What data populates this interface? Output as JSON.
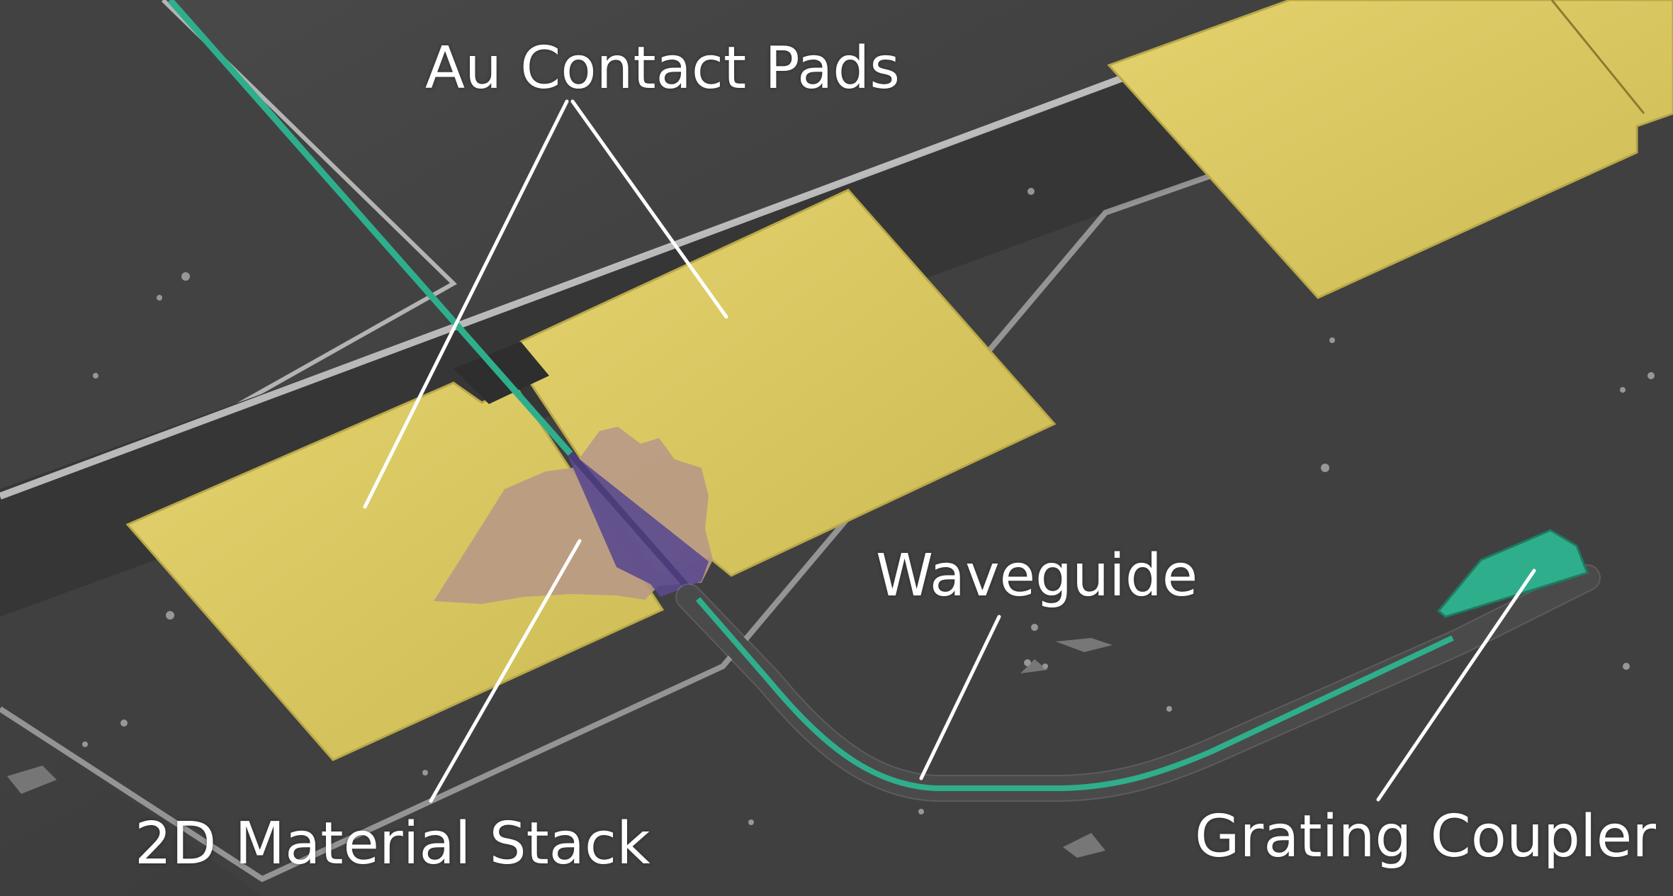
{
  "labels": {
    "contact_pads": "Au Contact Pads",
    "waveguide": "Waveguide",
    "material_stack": "2D Material Stack",
    "grating_coupler": "Grating Coupler"
  },
  "colors": {
    "substrate": "#3c3c3c",
    "substrate_light": "#4a4a4a",
    "trench_edge": "#d9d9d9",
    "gold_pads": "#d6c65c",
    "waveguide": "#2fae8c",
    "material_stack": "#b89a86",
    "overlap_region": "#5b4a8e",
    "annotation": "#ffffff"
  }
}
